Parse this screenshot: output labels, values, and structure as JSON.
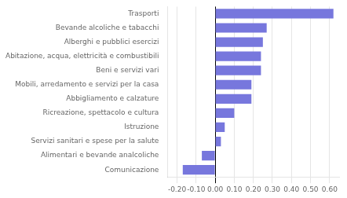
{
  "chart_data": {
    "type": "bar",
    "orientation": "horizontal",
    "categories": [
      "Comunicazione",
      "Alimentari e bevande analcoliche",
      "Servizi sanitari e spese per la salute",
      "Istruzione",
      "Ricreazione, spettacolo e cultura",
      "Abbigliamento e calzature",
      "Mobili, arredamento e servizi per la casa",
      "Beni e servizi vari",
      "Abitazione, acqua, elettricità e combustibili",
      "Alberghi e pubblici esercizi",
      "Bevande alcoliche e tabacchi",
      "Trasporti"
    ],
    "values": [
      -0.17,
      -0.07,
      0.03,
      0.05,
      0.1,
      0.19,
      0.19,
      0.24,
      0.24,
      0.25,
      0.27,
      0.62
    ],
    "color": "#7777dd",
    "xlim": [
      -0.25,
      0.65
    ],
    "xticks": [
      {
        "value": -0.2,
        "label": "-0.20"
      },
      {
        "value": -0.1,
        "label": "-0.10"
      },
      {
        "value": 0.0,
        "label": "0.00"
      },
      {
        "value": 0.1,
        "label": "0.10"
      },
      {
        "value": 0.2,
        "label": "0.20"
      },
      {
        "value": 0.3,
        "label": "0.30"
      },
      {
        "value": 0.4,
        "label": "0.40"
      },
      {
        "value": 0.5,
        "label": "0.50"
      },
      {
        "value": 0.6,
        "label": "0.60"
      }
    ],
    "grid": true
  }
}
